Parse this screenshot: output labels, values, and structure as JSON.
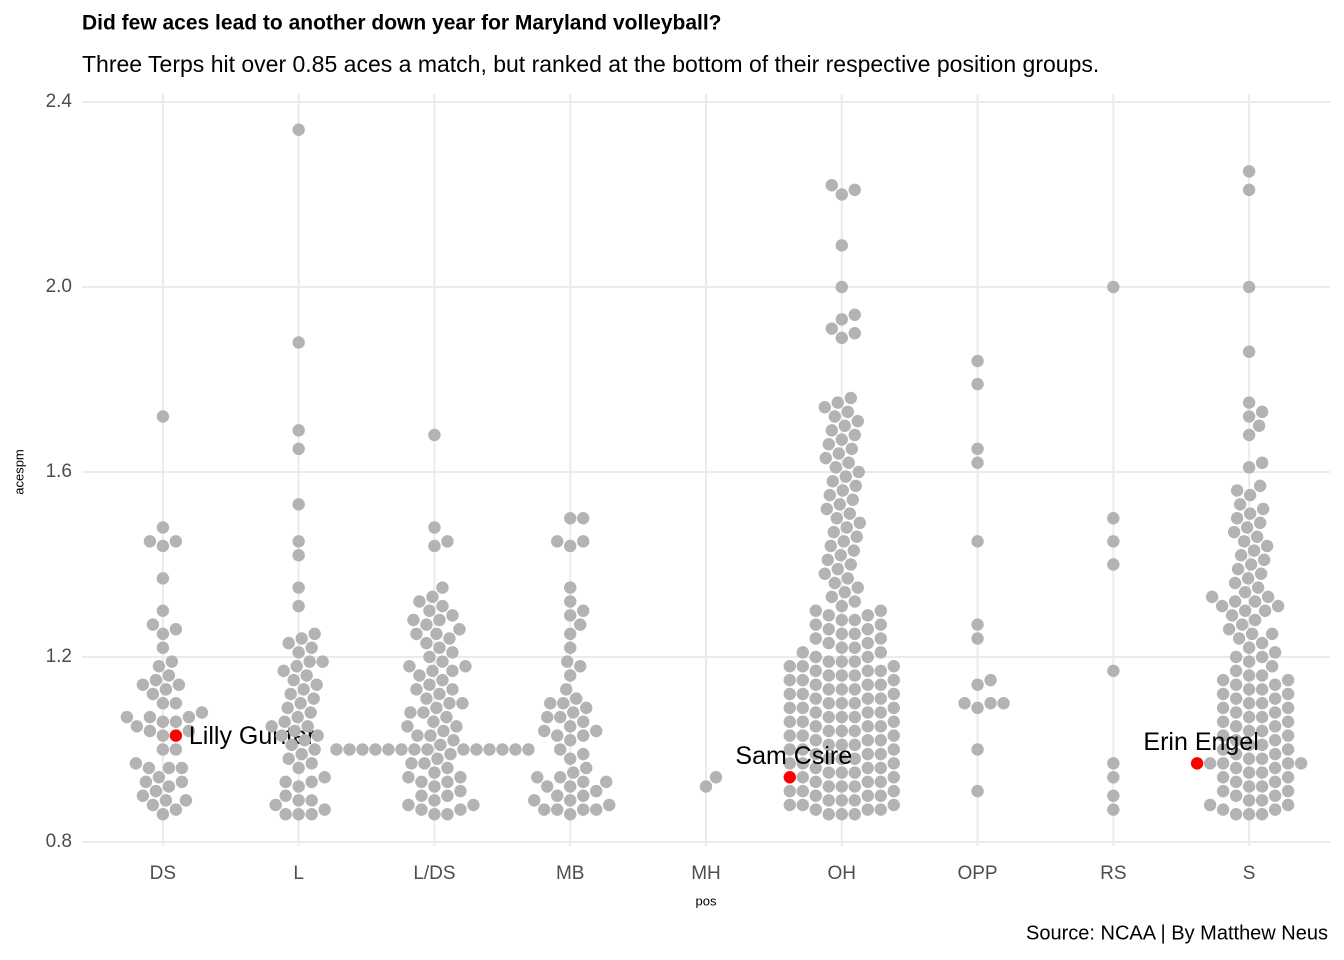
{
  "chart_data": {
    "type": "beeswarm",
    "title": "Did few aces lead to another down year for Maryland volleyball?",
    "subtitle": "Three Terps hit over 0.85 aces a match, but ranked at the bottom of their respective position groups.",
    "caption": "Source: NCAA | By Matthew Neus",
    "x_label": "pos",
    "y_label": "acespm",
    "color": "#b3b3b3",
    "grid": true,
    "ylim": [
      0.8,
      2.4
    ],
    "yticks": [
      0.8,
      1.2,
      1.6,
      {
        "value": 2,
        "label": "2.0"
      },
      2.4
    ],
    "categories": [
      "DS",
      "L",
      "L/DS",
      "MB",
      "MH",
      "OH",
      "OPP",
      "RS",
      "S"
    ],
    "values": [
      [
        1.72,
        1.48,
        1.45,
        1.45,
        1.44,
        1.37,
        1.3,
        1.27,
        1.26,
        1.25,
        1.22,
        1.19,
        1.18,
        1.16,
        1.15,
        1.14,
        1.14,
        1.13,
        1.12,
        1.1,
        1.1,
        1.08,
        1.07,
        1.07,
        1.07,
        1.06,
        1.06,
        1.05,
        1.04,
        1.04,
        1.03,
        1.0,
        1.0,
        0.97,
        0.96,
        0.96,
        0.96,
        0.94,
        0.93,
        0.93,
        0.92,
        0.91,
        0.9,
        0.89,
        0.89,
        0.88,
        0.87,
        0.86
      ],
      [
        2.34,
        1.88,
        1.69,
        1.65,
        1.53,
        1.45,
        1.42,
        1.35,
        1.31,
        1.25,
        1.24,
        1.23,
        1.22,
        1.21,
        1.19,
        1.19,
        1.18,
        1.17,
        1.16,
        1.15,
        1.14,
        1.13,
        1.12,
        1.11,
        1.1,
        1.09,
        1.08,
        1.07,
        1.06,
        1.05,
        1.05,
        1.04,
        1.03,
        1.03,
        1.02,
        1.01,
        1.0,
        0.99,
        0.98,
        0.97,
        0.96,
        0.94,
        0.93,
        0.93,
        0.92,
        0.9,
        0.89,
        0.89,
        0.88,
        0.87,
        0.86,
        0.86,
        0.86
      ],
      [
        1.68,
        1.48,
        1.45,
        1.44,
        1.35,
        1.33,
        1.32,
        1.31,
        1.3,
        1.29,
        1.28,
        1.27,
        1.26,
        1.25,
        1.24,
        1.23,
        1.22,
        1.2,
        1.19,
        1.18,
        1.18,
        1.17,
        1.16,
        1.15,
        1.14,
        1.13,
        1.12,
        1.11,
        1.1,
        1.1,
        1.09,
        1.08,
        1.07,
        1.06,
        1.05,
        1.04,
        1.03,
        1.03,
        1.02,
        1.01,
        1.0,
        1.0,
        1.0,
        1.0,
        1.0,
        1.0,
        1.0,
        1.0,
        1.0,
        1.0,
        1.0,
        1.0,
        1.0,
        1.0,
        0.99,
        0.98,
        0.97,
        0.96,
        0.95,
        0.94,
        0.93,
        0.93,
        0.92,
        0.91,
        0.9,
        0.89,
        0.88,
        0.88,
        0.87,
        0.87,
        0.86,
        0.86,
        1.28,
        1.25,
        1.21,
        1.17,
        1.13,
        1.08,
        1.05,
        0.97,
        0.94,
        0.9
      ],
      [
        1.5,
        1.5,
        1.45,
        1.45,
        1.44,
        1.35,
        1.32,
        1.3,
        1.29,
        1.27,
        1.25,
        1.22,
        1.19,
        1.18,
        1.16,
        1.13,
        1.11,
        1.1,
        1.1,
        1.09,
        1.08,
        1.07,
        1.07,
        1.06,
        1.05,
        1.04,
        1.04,
        1.03,
        1.03,
        1.02,
        1.0,
        0.99,
        0.98,
        0.96,
        0.95,
        0.94,
        0.94,
        0.93,
        0.93,
        0.92,
        0.92,
        0.91,
        0.9,
        0.9,
        0.89,
        0.89,
        0.88,
        0.87,
        0.87,
        0.87,
        0.87,
        0.86
      ],
      [
        0.94,
        0.92
      ],
      [
        2.22,
        2.21,
        2.2,
        2.09,
        2.0,
        1.94,
        1.93,
        1.91,
        1.9,
        1.89,
        1.76,
        1.75,
        1.74,
        1.73,
        1.72,
        1.71,
        1.7,
        1.69,
        1.68,
        1.67,
        1.66,
        1.65,
        1.64,
        1.63,
        1.62,
        1.61,
        1.6,
        1.59,
        1.58,
        1.57,
        1.56,
        1.55,
        1.54,
        1.53,
        1.52,
        1.51,
        1.5,
        1.49,
        1.48,
        1.47,
        1.46,
        1.45,
        1.44,
        1.43,
        1.42,
        1.41,
        1.4,
        1.39,
        1.38,
        1.37,
        1.36,
        1.35,
        1.34,
        1.33,
        1.32,
        1.31,
        1.3,
        1.3,
        1.29,
        1.29,
        1.28,
        1.28,
        1.27,
        1.27,
        1.26,
        1.26,
        1.25,
        1.25,
        1.24,
        1.24,
        1.23,
        1.23,
        1.22,
        1.22,
        1.21,
        1.21,
        1.2,
        1.2,
        1.19,
        1.19,
        1.19,
        1.18,
        1.18,
        1.18,
        1.17,
        1.17,
        1.17,
        1.16,
        1.16,
        1.16,
        1.15,
        1.15,
        1.15,
        1.14,
        1.14,
        1.14,
        1.13,
        1.13,
        1.13,
        1.12,
        1.12,
        1.12,
        1.11,
        1.11,
        1.11,
        1.1,
        1.1,
        1.1,
        1.09,
        1.09,
        1.09,
        1.08,
        1.08,
        1.08,
        1.07,
        1.07,
        1.07,
        1.06,
        1.06,
        1.06,
        1.05,
        1.05,
        1.05,
        1.04,
        1.04,
        1.04,
        1.03,
        1.03,
        1.03,
        1.02,
        1.02,
        1.02,
        1.01,
        1.01,
        1.01,
        1.0,
        1.0,
        1.0,
        0.99,
        0.99,
        0.99,
        0.98,
        0.98,
        0.98,
        0.97,
        0.97,
        0.97,
        0.96,
        0.96,
        0.96,
        0.95,
        0.95,
        0.95,
        0.94,
        0.94,
        0.93,
        0.93,
        0.93,
        0.92,
        0.92,
        0.92,
        0.91,
        0.91,
        0.91,
        0.9,
        0.9,
        0.9,
        0.89,
        0.89,
        0.89,
        0.88,
        0.88,
        0.88,
        0.87,
        0.87,
        0.87,
        0.86,
        0.86,
        0.86
      ],
      [
        1.84,
        1.79,
        1.65,
        1.62,
        1.45,
        1.27,
        1.24,
        1.15,
        1.14,
        1.1,
        1.1,
        1.1,
        1.09,
        1.0,
        0.91
      ],
      [
        2.0,
        1.5,
        1.45,
        1.4,
        1.17,
        0.97,
        0.94,
        0.9,
        0.87
      ],
      [
        2.25,
        2.21,
        2.0,
        1.86,
        1.75,
        1.73,
        1.72,
        1.7,
        1.68,
        1.62,
        1.61,
        1.57,
        1.56,
        1.55,
        1.53,
        1.52,
        1.51,
        1.5,
        1.49,
        1.48,
        1.47,
        1.46,
        1.45,
        1.44,
        1.43,
        1.42,
        1.41,
        1.4,
        1.39,
        1.38,
        1.37,
        1.36,
        1.35,
        1.34,
        1.33,
        1.33,
        1.32,
        1.32,
        1.31,
        1.31,
        1.3,
        1.3,
        1.29,
        1.28,
        1.27,
        1.26,
        1.25,
        1.25,
        1.24,
        1.23,
        1.22,
        1.21,
        1.2,
        1.2,
        1.19,
        1.18,
        1.17,
        1.16,
        1.16,
        1.15,
        1.15,
        1.14,
        1.14,
        1.13,
        1.13,
        1.12,
        1.12,
        1.11,
        1.11,
        1.1,
        1.1,
        1.09,
        1.09,
        1.08,
        1.08,
        1.07,
        1.07,
        1.06,
        1.06,
        1.05,
        1.05,
        1.04,
        1.04,
        1.03,
        1.03,
        1.02,
        1.02,
        1.01,
        1.01,
        1.0,
        1.0,
        0.99,
        0.99,
        0.98,
        0.98,
        0.97,
        0.97,
        0.97,
        0.97,
        0.96,
        0.96,
        0.95,
        0.95,
        0.94,
        0.94,
        0.93,
        0.93,
        0.92,
        0.92,
        0.91,
        0.91,
        0.9,
        0.9,
        0.89,
        0.89,
        0.88,
        0.88,
        0.87,
        0.87,
        0.86,
        0.86,
        0.86
      ]
    ],
    "highlights": [
      {
        "category": "DS",
        "value": 1.03,
        "label": "Lilly Gunter",
        "color": "#ff0000"
      },
      {
        "category": "OH",
        "value": 0.94,
        "label": "Sam Csire",
        "color": "#ff0000"
      },
      {
        "category": "S",
        "value": 0.97,
        "label": "Erin Engel",
        "color": "#ff0000"
      }
    ]
  }
}
